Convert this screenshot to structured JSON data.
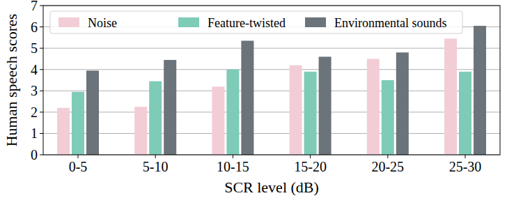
{
  "chart_data": {
    "type": "bar",
    "x_label": "SCR level (dB)",
    "y_label": "Human speech scores",
    "categories": [
      "0-5",
      "5-10",
      "10-15",
      "15-20",
      "20-25",
      "25-30"
    ],
    "series": [
      {
        "name": "Noise",
        "color": "#f2cdd5",
        "values": [
          2.2,
          2.25,
          3.2,
          4.2,
          4.5,
          5.45
        ]
      },
      {
        "name": "Feature-twisted",
        "color": "#7ecbb7",
        "values": [
          2.95,
          3.45,
          4.0,
          3.9,
          3.5,
          3.9
        ]
      },
      {
        "name": "Environmental sounds",
        "color": "#6b737b",
        "values": [
          3.95,
          4.45,
          5.35,
          4.6,
          4.8,
          6.05
        ]
      }
    ],
    "ylim": [
      0,
      7
    ],
    "yticks": [
      0,
      1,
      2,
      3,
      4,
      5,
      6,
      7
    ],
    "grid": true,
    "legend": "top"
  }
}
